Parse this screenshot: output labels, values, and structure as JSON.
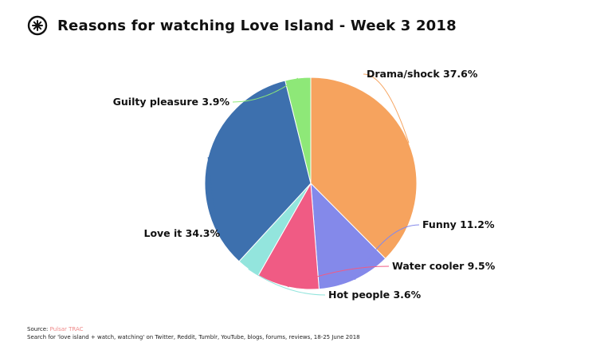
{
  "header": {
    "title": "Reasons for watching Love Island - Week 3 2018",
    "logo_icon": "pulsar-logo-icon"
  },
  "chart_data": {
    "type": "pie",
    "title": "Reasons for watching Love Island - Week 3 2018",
    "slices": [
      {
        "label": "Drama/shock",
        "value": 37.6,
        "text": "Drama/shock 37.6%",
        "color": "#f6a35e"
      },
      {
        "label": "Funny",
        "value": 11.2,
        "text": "Funny 11.2%",
        "color": "#8489ea"
      },
      {
        "label": "Water cooler",
        "value": 9.5,
        "text": "Water cooler 9.5%",
        "color": "#f05b84"
      },
      {
        "label": "Hot people",
        "value": 3.6,
        "text": "Hot people 3.6%",
        "color": "#93e5dd"
      },
      {
        "label": "Love it",
        "value": 34.3,
        "text": "Love it 34.3%",
        "color": "#3d70ae"
      },
      {
        "label": "Guilty pleasure",
        "value": 3.9,
        "text": "Guilty pleasure 3.9%",
        "color": "#8ee878"
      }
    ],
    "start_angle_deg": 90,
    "direction": "clockwise-from-top",
    "legend": "none (labels outside slices with leader lines)"
  },
  "footer": {
    "source_label": "Source: ",
    "source_name": "Pulsar TRAC",
    "note": "Search for 'love island + watch, watching' on Twitter, Reddit, Tumblr, YouTube, blogs, forums, reviews, 18-25 June 2018"
  }
}
